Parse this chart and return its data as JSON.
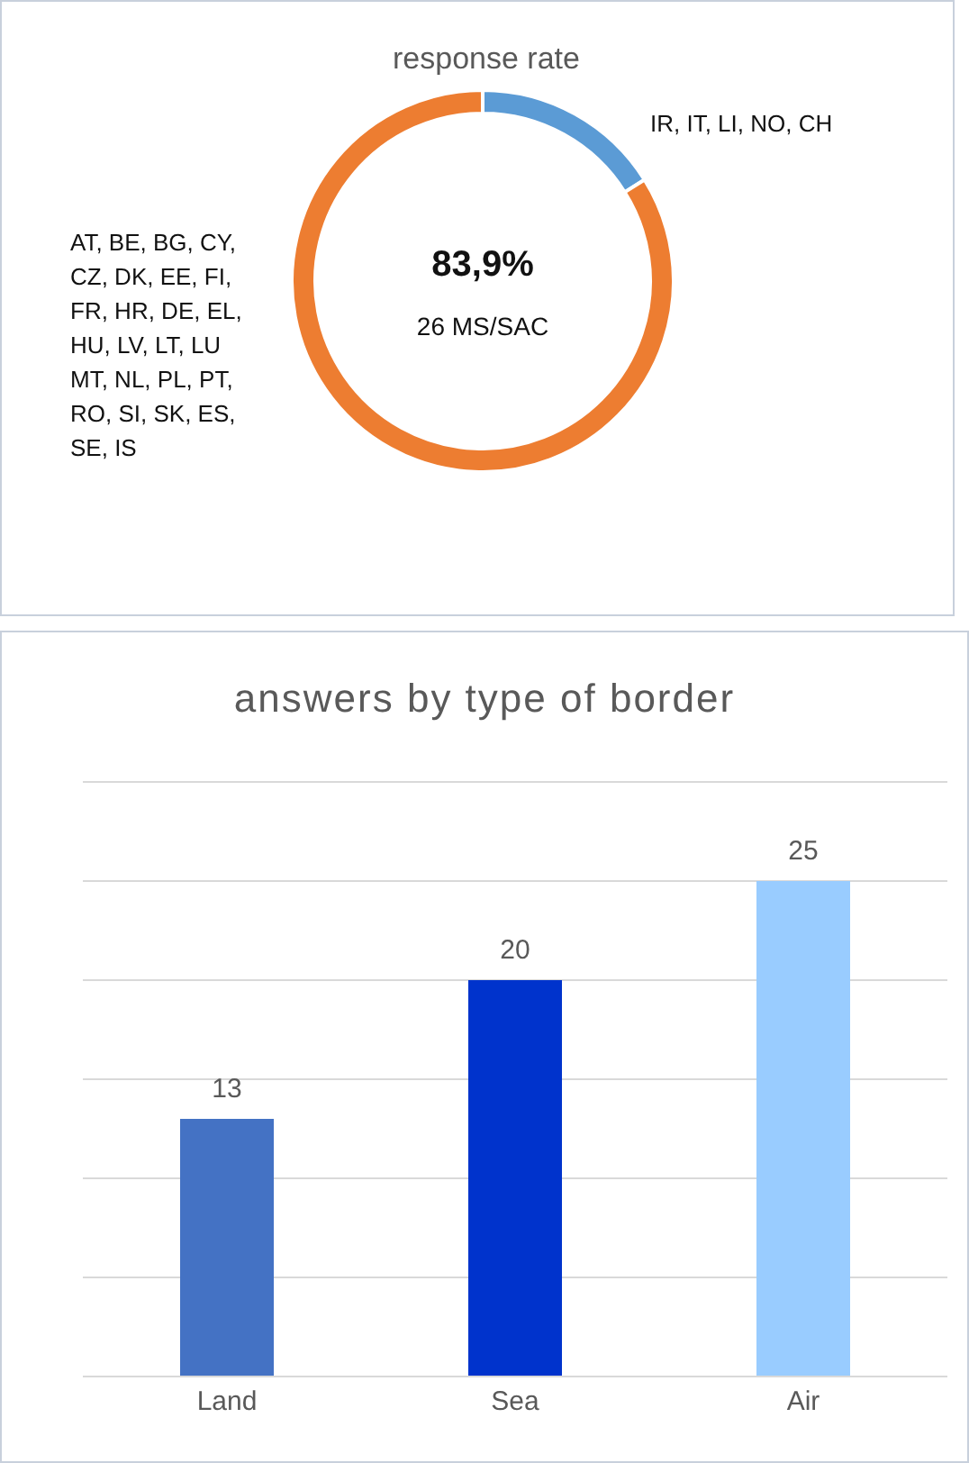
{
  "chart_data": [
    {
      "type": "donut",
      "title": "response rate",
      "categories": [
        "IR, IT, LI, NO, CH",
        "AT, BE, BG, CY, CZ, DK, EE, FI, FR, HR, DE, EL, HU, LV, LT, LU MT, NL, PL, PT, RO, SI, SK, ES, SE, IS"
      ],
      "values": [
        16.1,
        83.9
      ],
      "colors": [
        "#5b9bd5",
        "#ed7d31"
      ],
      "annotations": [
        "83,9%",
        "26 MS/SAC"
      ],
      "legend": false
    },
    {
      "type": "bar",
      "title": "answers by type of border",
      "categories": [
        "Land",
        "Sea",
        "Air"
      ],
      "values": [
        13,
        20,
        25
      ],
      "colors": [
        "#4472c4",
        "#0033cc",
        "#99ccff"
      ],
      "ylim": [
        0,
        30
      ],
      "yticks": [
        0,
        5,
        10,
        15,
        20,
        25,
        30
      ],
      "tick_labels": "x",
      "grid": "y",
      "data_labels": true,
      "legend": false
    }
  ]
}
